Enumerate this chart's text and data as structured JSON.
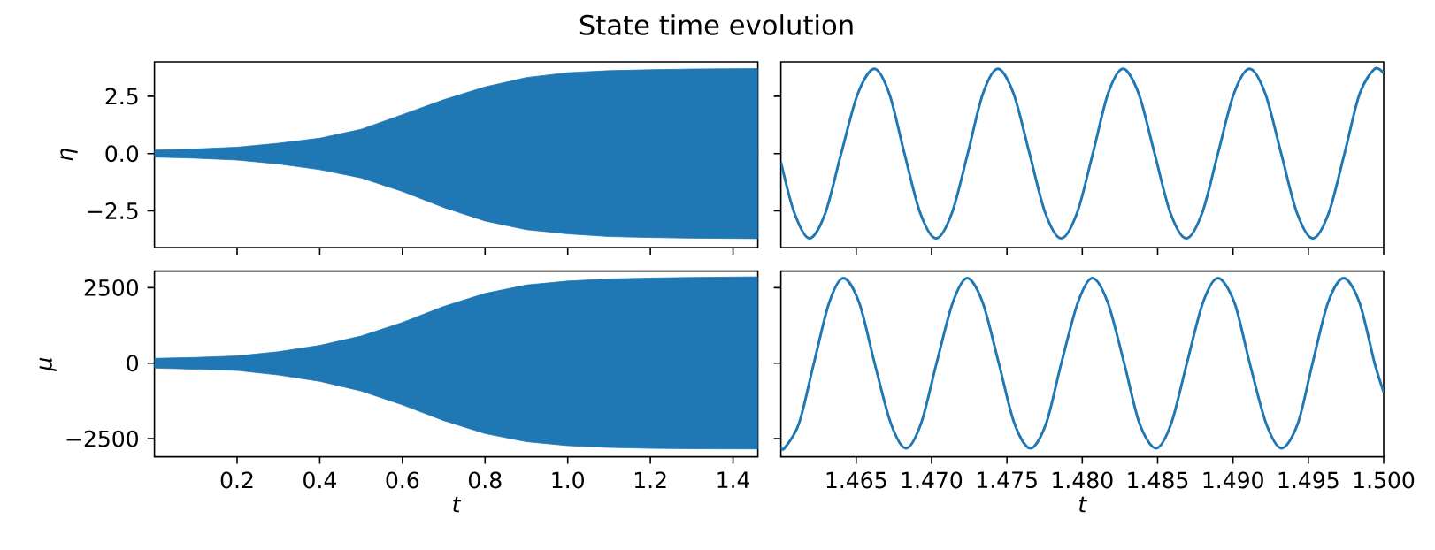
{
  "chart_data": [
    {
      "type": "area",
      "title": "State time evolution",
      "ylabel": "η",
      "xlim": [
        0,
        1.46
      ],
      "ylim": [
        -4.1,
        4.0
      ],
      "tick_labels": "y",
      "xticks": [
        0.2,
        0.4,
        0.6,
        0.8,
        1,
        1.2,
        1.4
      ],
      "yticks": [
        {
          "value": -2.5,
          "label": "−2.5"
        },
        {
          "value": 0,
          "label": "0.0"
        },
        2.5
      ],
      "series": [
        {
          "type": "area",
          "color": "#1f77b4",
          "x": [
            0,
            0.1,
            0.2,
            0.3,
            0.4,
            0.5,
            0.6,
            0.7,
            0.8,
            0.9,
            1.0,
            1.1,
            1.2,
            1.3,
            1.46
          ],
          "values": [
            0.15,
            0.2,
            0.28,
            0.45,
            0.67,
            1.06,
            1.7,
            2.35,
            2.91,
            3.32,
            3.53,
            3.62,
            3.66,
            3.69,
            3.71
          ]
        },
        {
          "type": "area",
          "color": "#1f77b4",
          "x": [
            0,
            0.1,
            0.2,
            0.3,
            0.4,
            0.5,
            0.6,
            0.7,
            0.8,
            0.9,
            1.0,
            1.1,
            1.2,
            1.3,
            1.46
          ],
          "values": [
            -0.15,
            -0.2,
            -0.28,
            -0.45,
            -0.7,
            -1.06,
            -1.65,
            -2.35,
            -2.94,
            -3.32,
            -3.5,
            -3.62,
            -3.66,
            -3.69,
            -3.71
          ]
        }
      ]
    },
    {
      "type": "line",
      "xlim": [
        1.46,
        1.5
      ],
      "ylim": [
        -4.1,
        4.0
      ],
      "tick_labels": false,
      "xticks": [
        1.465,
        1.47,
        1.475,
        1.48,
        1.485,
        1.49,
        1.495,
        1.5
      ],
      "yticks": [
        -2.5,
        0,
        2.5
      ],
      "series": [
        {
          "color": "#1f77b4",
          "x": [
            1.46,
            1.4609,
            1.4619,
            1.46295,
            1.464,
            1.4651,
            1.4662,
            1.4672,
            1.4682,
            1.46925,
            1.4703,
            1.47135,
            1.4724,
            1.4734,
            1.4744,
            1.47545,
            1.4765,
            1.47755,
            1.4786,
            1.47965,
            1.4807,
            1.4817,
            1.4827,
            1.48375,
            1.4848,
            1.48585,
            1.4869,
            1.48795,
            1.489,
            1.49005,
            1.4911,
            1.49215,
            1.4932,
            1.49425,
            1.4953,
            1.49635,
            1.4974,
            1.4984,
            1.4994,
            1.5
          ],
          "values": [
            -0.36,
            -2.6,
            -3.7,
            -2.6,
            0,
            2.6,
            3.7,
            2.6,
            0,
            -2.6,
            -3.7,
            -2.6,
            0,
            2.6,
            3.7,
            2.6,
            0,
            -2.6,
            -3.7,
            -2.6,
            0,
            2.6,
            3.7,
            2.6,
            0,
            -2.6,
            -3.7,
            -2.6,
            0,
            2.6,
            3.7,
            2.6,
            0,
            -2.6,
            -3.7,
            -2.6,
            0,
            2.6,
            3.7,
            3.5
          ]
        }
      ]
    },
    {
      "type": "area",
      "xlabel": "t",
      "ylabel": "μ",
      "xlim": [
        0,
        1.46
      ],
      "ylim": [
        -3100,
        3050
      ],
      "xticks": [
        0.2,
        0.4,
        0.6,
        0.8,
        {
          "value": 1,
          "label": "1.0"
        },
        1.2,
        1.4
      ],
      "yticks": [
        {
          "value": -2500,
          "label": "−2500"
        },
        0,
        2500
      ],
      "series": [
        {
          "type": "area",
          "color": "#1f77b4",
          "x": [
            0,
            0.1,
            0.2,
            0.3,
            0.4,
            0.5,
            0.6,
            0.7,
            0.8,
            0.9,
            1.0,
            1.1,
            1.2,
            1.3,
            1.46
          ],
          "values": [
            160,
            190,
            240,
            380,
            590,
            900,
            1350,
            1880,
            2310,
            2590,
            2720,
            2790,
            2820,
            2840,
            2860
          ]
        },
        {
          "type": "area",
          "color": "#1f77b4",
          "x": [
            0,
            0.1,
            0.2,
            0.3,
            0.4,
            0.5,
            0.6,
            0.7,
            0.8,
            0.9,
            1.0,
            1.1,
            1.2,
            1.3,
            1.46
          ],
          "values": [
            -160,
            -200,
            -240,
            -390,
            -600,
            -920,
            -1380,
            -1900,
            -2330,
            -2600,
            -2730,
            -2790,
            -2820,
            -2835,
            -2840
          ]
        }
      ]
    },
    {
      "type": "line",
      "xlabel": "t",
      "xlim": [
        1.46,
        1.5
      ],
      "ylim": [
        -3100,
        3050
      ],
      "tick_labels": "x",
      "xticks": [
        1.465,
        {
          "value": 1.47,
          "label": "1.470"
        },
        1.475,
        {
          "value": 1.48,
          "label": "1.480"
        },
        1.485,
        {
          "value": 1.49,
          "label": "1.490"
        },
        1.495,
        {
          "value": 1.5,
          "label": "1.500"
        }
      ],
      "yticks": [
        -2500,
        0,
        2500
      ],
      "series": [
        {
          "color": "#1f77b4",
          "x": [
            1.46,
            1.46023,
            1.4612,
            1.46219,
            1.4632,
            1.46415,
            1.4652,
            1.46622,
            1.4673,
            1.4683,
            1.4693,
            1.47033,
            1.4714,
            1.47237,
            1.4734,
            1.47446,
            1.4755,
            1.47656,
            1.4776,
            1.47861,
            1.4797,
            1.48067,
            1.4817,
            1.48278,
            1.4838,
            1.48489,
            1.4859,
            1.48694,
            1.488,
            1.489,
            1.4901,
            1.49111,
            1.4922,
            1.49323,
            1.4943,
            1.49528,
            1.4963,
            1.49734,
            1.4984,
            1.4994,
            1.5
          ],
          "values": [
            -2760,
            -2820,
            -2000,
            0,
            2000,
            2820,
            2000,
            0,
            -2000,
            -2820,
            -2000,
            0,
            2000,
            2820,
            2000,
            0,
            -2000,
            -2820,
            -2000,
            0,
            2000,
            2820,
            2000,
            0,
            -2000,
            -2820,
            -2000,
            0,
            2000,
            2820,
            2000,
            0,
            -2000,
            -2820,
            -2000,
            0,
            2000,
            2820,
            2000,
            0,
            -960
          ]
        }
      ]
    }
  ]
}
